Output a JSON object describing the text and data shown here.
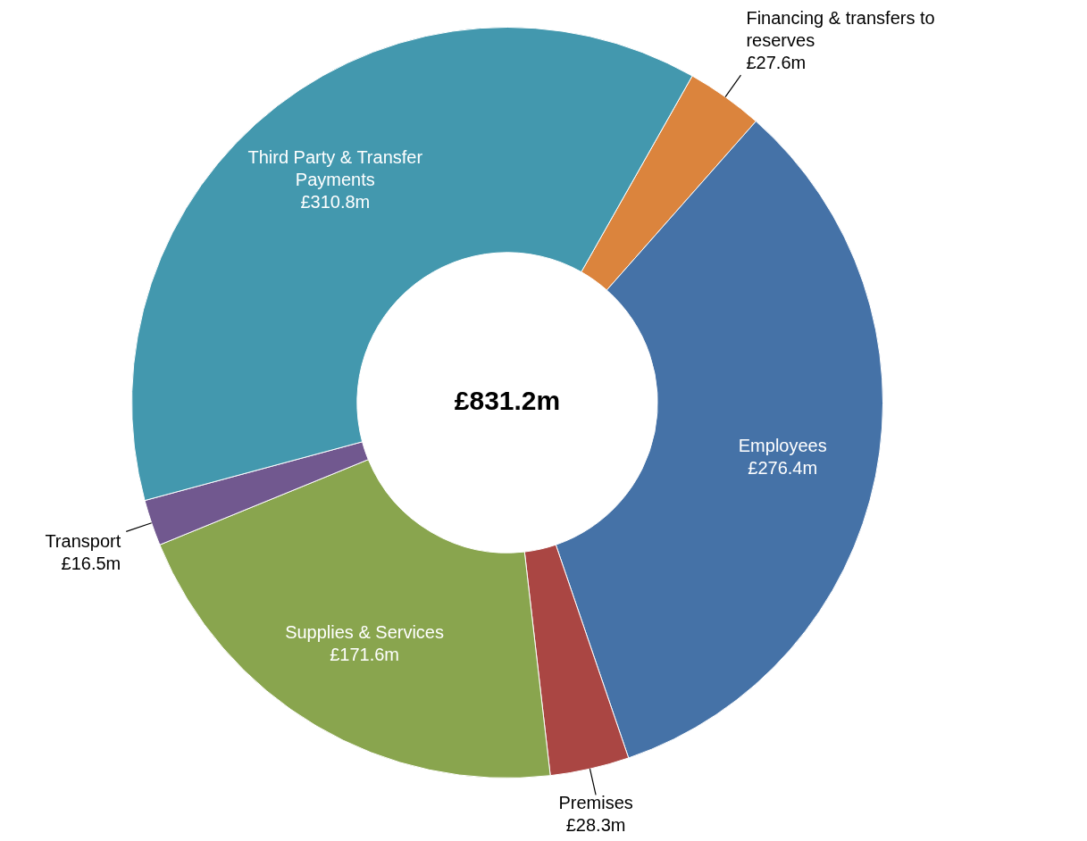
{
  "chart_data": {
    "type": "donut",
    "categories": [
      "Financing & transfers to reserves",
      "Employees",
      "Premises",
      "Supplies & Services",
      "Transport",
      "Third Party & Transfer Payments"
    ],
    "values": [
      27.6,
      276.4,
      28.3,
      171.6,
      16.5,
      310.8
    ],
    "value_labels": [
      "£27.6m",
      "£276.4m",
      "£28.3m",
      "£171.6m",
      "£16.5m",
      "£310.8m"
    ],
    "colors": [
      "#db843d",
      "#4572a7",
      "#aa4643",
      "#89a54e",
      "#71588f",
      "#4398ae"
    ],
    "annotations": [
      "£831.2m"
    ],
    "legend": false
  }
}
